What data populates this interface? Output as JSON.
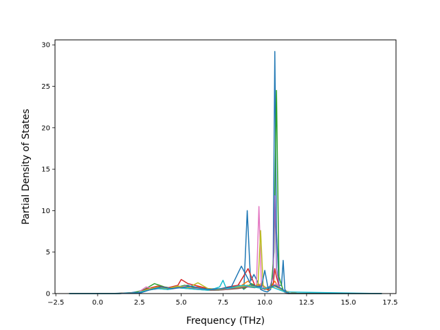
{
  "chart_data": {
    "type": "line",
    "title": "",
    "xlabel": "Frequency (THz)",
    "ylabel": "Partial Density of States",
    "xlim": [
      -2.55,
      17.85
    ],
    "ylim": [
      0,
      30.6
    ],
    "x_ticks": [
      -2.5,
      0.0,
      2.5,
      5.0,
      7.5,
      10.0,
      12.5,
      15.0,
      17.5
    ],
    "x_tick_labels": [
      "−2.5",
      "0.0",
      "2.5",
      "5.0",
      "7.5",
      "10.0",
      "12.5",
      "15.0",
      "17.5"
    ],
    "y_ticks": [
      0,
      5,
      10,
      15,
      20,
      25,
      30
    ],
    "y_tick_labels": [
      "0",
      "5",
      "10",
      "15",
      "20",
      "25",
      "30"
    ],
    "grid": false,
    "legend": "none",
    "series": [
      {
        "color": "#1f77b4",
        "x": [
          -1.7,
          0.8,
          2.0,
          2.6,
          3.0,
          3.4,
          3.8,
          4.2,
          4.6,
          5.0,
          5.4,
          5.8,
          6.2,
          6.6,
          7.0,
          7.4,
          7.8,
          8.2,
          8.5,
          8.75,
          8.95,
          9.15,
          9.35,
          9.55,
          9.75,
          9.95,
          10.15,
          10.35,
          10.5,
          10.6,
          10.7,
          10.85,
          11.0,
          11.1,
          11.2,
          11.4,
          12.0,
          17.0
        ],
        "y": [
          0,
          0,
          0.1,
          0.3,
          0.5,
          0.7,
          0.6,
          0.5,
          0.6,
          0.9,
          1.0,
          0.7,
          0.6,
          0.5,
          0.4,
          0.5,
          0.6,
          0.8,
          1.0,
          0.5,
          10.0,
          1.5,
          2.3,
          1.5,
          0.5,
          0.3,
          0.2,
          0.5,
          3.0,
          29.2,
          7.5,
          1.0,
          1.0,
          4.0,
          0.5,
          0,
          0,
          0
        ]
      },
      {
        "color": "#ff7f0e",
        "x": [
          -1.7,
          1.0,
          2.2,
          3.0,
          3.6,
          4.2,
          4.8,
          5.4,
          6.0,
          6.6,
          7.2,
          7.8,
          8.4,
          9.0,
          9.4,
          9.8,
          10.2,
          10.6,
          10.8,
          11.2,
          12.0,
          17.0
        ],
        "y": [
          0,
          0,
          0.1,
          0.4,
          0.8,
          0.6,
          0.9,
          0.7,
          0.8,
          0.6,
          0.5,
          0.6,
          0.7,
          1.5,
          0.8,
          1.2,
          0.4,
          1.5,
          0.8,
          0.3,
          0,
          0
        ]
      },
      {
        "color": "#2ca02c",
        "x": [
          -1.7,
          1.0,
          2.2,
          2.8,
          3.4,
          4.0,
          4.6,
          5.2,
          5.8,
          6.4,
          7.0,
          7.6,
          8.2,
          8.8,
          9.2,
          9.6,
          10.0,
          10.4,
          10.55,
          10.7,
          10.85,
          11.1,
          11.5,
          17.0
        ],
        "y": [
          0,
          0,
          0.1,
          0.5,
          1.2,
          0.8,
          0.6,
          1.0,
          0.7,
          0.5,
          0.6,
          0.5,
          0.9,
          0.6,
          1.2,
          0.8,
          0.5,
          1.0,
          5.0,
          24.5,
          2.0,
          0.4,
          0,
          0
        ]
      },
      {
        "color": "#d62728",
        "x": [
          -1.7,
          1.0,
          2.4,
          3.0,
          3.6,
          4.2,
          4.8,
          5.0,
          5.4,
          6.0,
          6.6,
          7.2,
          7.8,
          8.4,
          9.0,
          9.4,
          9.8,
          10.2,
          10.5,
          10.6,
          10.7,
          10.9,
          11.1,
          11.5,
          17.0
        ],
        "y": [
          0,
          0,
          0.1,
          0.6,
          0.9,
          0.7,
          1.0,
          1.7,
          1.2,
          0.9,
          0.6,
          0.5,
          0.8,
          1.0,
          3.0,
          1.0,
          0.6,
          0.5,
          1.0,
          3.0,
          2.0,
          0.6,
          0.3,
          0,
          0
        ]
      },
      {
        "color": "#9467bd",
        "x": [
          -1.7,
          1.2,
          2.4,
          3.0,
          3.6,
          4.2,
          4.8,
          5.4,
          6.0,
          6.6,
          7.2,
          7.8,
          8.4,
          9.0,
          9.5,
          9.9,
          10.3,
          10.5,
          10.6,
          10.7,
          10.9,
          11.3,
          17.0
        ],
        "y": [
          0,
          0,
          0.1,
          0.5,
          0.7,
          0.6,
          0.9,
          0.7,
          0.6,
          0.5,
          0.5,
          0.6,
          0.9,
          1.0,
          0.8,
          0.6,
          0.8,
          2.0,
          11.8,
          3.0,
          0.6,
          0,
          0
        ]
      },
      {
        "color": "#8c564b",
        "x": [
          -1.7,
          1.2,
          2.4,
          3.0,
          3.6,
          4.2,
          4.8,
          5.4,
          6.0,
          6.6,
          7.2,
          7.8,
          8.4,
          9.0,
          9.4,
          9.8,
          10.2,
          10.6,
          11.0,
          11.4,
          17.0
        ],
        "y": [
          0,
          0,
          0.1,
          0.4,
          0.6,
          0.5,
          0.7,
          0.6,
          0.5,
          0.4,
          0.4,
          0.5,
          0.6,
          0.8,
          0.7,
          1.0,
          0.6,
          0.9,
          0.5,
          0,
          0
        ]
      },
      {
        "color": "#e377c2",
        "x": [
          -1.7,
          1.2,
          2.4,
          2.9,
          3.4,
          4.0,
          4.6,
          5.2,
          5.8,
          6.4,
          7.0,
          7.6,
          8.2,
          8.8,
          9.2,
          9.5,
          9.65,
          9.8,
          10.0,
          10.4,
          10.7,
          11.0,
          11.4,
          17.0
        ],
        "y": [
          0,
          0,
          0.1,
          0.8,
          0.5,
          0.7,
          0.6,
          0.9,
          0.6,
          0.5,
          0.6,
          0.5,
          0.7,
          0.9,
          0.8,
          1.0,
          10.5,
          1.0,
          0.6,
          0.8,
          1.2,
          0.4,
          0,
          0
        ]
      },
      {
        "color": "#7f7f7f",
        "x": [
          -1.7,
          1.2,
          2.4,
          3.0,
          3.6,
          4.2,
          4.8,
          5.4,
          6.0,
          6.6,
          7.2,
          7.8,
          8.4,
          9.0,
          9.6,
          10.2,
          10.6,
          11.0,
          11.4,
          17.0
        ],
        "y": [
          0,
          0,
          0.1,
          0.4,
          0.7,
          0.5,
          0.8,
          0.6,
          0.7,
          0.5,
          0.4,
          0.6,
          0.7,
          0.9,
          0.7,
          0.6,
          1.0,
          0.5,
          0,
          0
        ]
      },
      {
        "color": "#bcbd22",
        "x": [
          -1.7,
          1.2,
          2.4,
          3.0,
          3.6,
          4.2,
          4.8,
          5.4,
          6.0,
          6.6,
          7.2,
          7.8,
          8.4,
          9.0,
          9.4,
          9.6,
          9.75,
          9.9,
          10.1,
          10.4,
          10.7,
          11.0,
          11.4,
          17.0
        ],
        "y": [
          0,
          0,
          0.1,
          0.5,
          0.8,
          0.6,
          0.9,
          0.7,
          1.3,
          0.6,
          0.5,
          0.7,
          0.8,
          1.0,
          0.8,
          1.2,
          7.6,
          1.0,
          0.6,
          0.7,
          1.0,
          0.4,
          0,
          0
        ]
      },
      {
        "color": "#17becf",
        "x": [
          -1.7,
          1.2,
          2.4,
          3.0,
          3.6,
          4.2,
          4.8,
          5.4,
          6.0,
          6.6,
          7.0,
          7.3,
          7.5,
          7.7,
          8.0,
          8.4,
          8.8,
          9.2,
          9.6,
          10.0,
          10.4,
          10.8,
          11.2,
          17.0
        ],
        "y": [
          0,
          0,
          0.1,
          0.4,
          0.6,
          0.5,
          0.7,
          0.6,
          0.5,
          0.4,
          0.6,
          0.8,
          1.6,
          0.6,
          0.7,
          0.9,
          1.0,
          0.8,
          0.7,
          0.6,
          0.8,
          0.5,
          0.2,
          0
        ]
      },
      {
        "color": "#1f77b4",
        "x": [
          -1.7,
          1.2,
          2.6,
          3.2,
          3.8,
          4.4,
          5.0,
          5.6,
          6.2,
          6.8,
          7.4,
          8.0,
          8.6,
          9.2,
          9.8,
          10.0,
          10.2,
          10.6,
          11.0,
          11.4,
          17.0
        ],
        "y": [
          0,
          0,
          0.1,
          0.5,
          0.8,
          0.6,
          0.7,
          0.9,
          0.6,
          0.5,
          0.6,
          0.8,
          3.3,
          1.0,
          0.8,
          2.8,
          0.6,
          1.0,
          0.6,
          0,
          0
        ]
      }
    ]
  }
}
